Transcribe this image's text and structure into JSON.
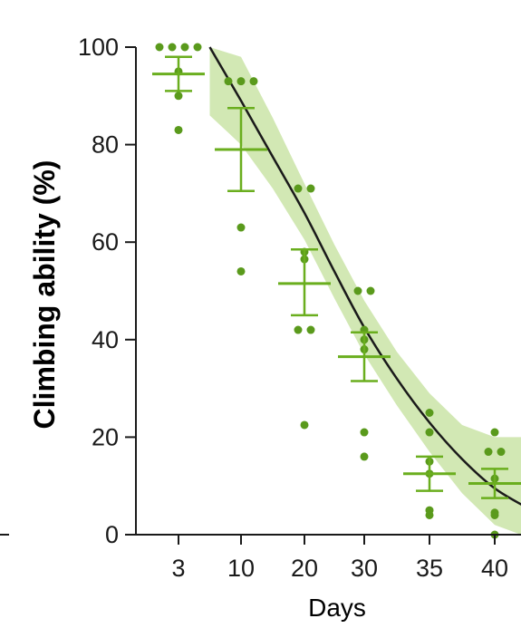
{
  "chart_data": {
    "type": "scatter",
    "title": "",
    "xlabel": "Days",
    "ylabel": "Climbing ability (%)",
    "x_categories": [
      "3",
      "10",
      "20",
      "30",
      "35",
      "40"
    ],
    "ylim": [
      0,
      100
    ],
    "y_ticks": [
      0,
      20,
      40,
      60,
      80,
      100
    ],
    "grid": false,
    "colors": {
      "points": "#5a9a1c",
      "mean_bars": "#6aae1e",
      "fit_line": "#1a1a1a",
      "confidence_band": "#d2e8b4"
    },
    "points": [
      {
        "x": "3",
        "y": 100
      },
      {
        "x": "3",
        "y": 100
      },
      {
        "x": "3",
        "y": 100
      },
      {
        "x": "3",
        "y": 100
      },
      {
        "x": "3",
        "y": 95
      },
      {
        "x": "3",
        "y": 90
      },
      {
        "x": "3",
        "y": 83
      },
      {
        "x": "10",
        "y": 93
      },
      {
        "x": "10",
        "y": 93
      },
      {
        "x": "10",
        "y": 93
      },
      {
        "x": "10",
        "y": 63
      },
      {
        "x": "10",
        "y": 54
      },
      {
        "x": "20",
        "y": 71
      },
      {
        "x": "20",
        "y": 71
      },
      {
        "x": "20",
        "y": 58
      },
      {
        "x": "20",
        "y": 56.5
      },
      {
        "x": "20",
        "y": 42
      },
      {
        "x": "20",
        "y": 42
      },
      {
        "x": "20",
        "y": 22.5
      },
      {
        "x": "30",
        "y": 50
      },
      {
        "x": "30",
        "y": 50
      },
      {
        "x": "30",
        "y": 42
      },
      {
        "x": "30",
        "y": 40
      },
      {
        "x": "30",
        "y": 38
      },
      {
        "x": "30",
        "y": 21
      },
      {
        "x": "30",
        "y": 16
      },
      {
        "x": "35",
        "y": 25
      },
      {
        "x": "35",
        "y": 21
      },
      {
        "x": "35",
        "y": 15
      },
      {
        "x": "35",
        "y": 12.5
      },
      {
        "x": "35",
        "y": 5
      },
      {
        "x": "35",
        "y": 4
      },
      {
        "x": "40",
        "y": 21
      },
      {
        "x": "40",
        "y": 17
      },
      {
        "x": "40",
        "y": 17
      },
      {
        "x": "40",
        "y": 11.5
      },
      {
        "x": "40",
        "y": 4.5
      },
      {
        "x": "40",
        "y": 4
      },
      {
        "x": "40",
        "y": 0
      }
    ],
    "means": [
      {
        "x": "3",
        "mean": 94.5,
        "sem_low": 91,
        "sem_high": 98
      },
      {
        "x": "10",
        "mean": 79,
        "sem_low": 70.5,
        "sem_high": 87.5
      },
      {
        "x": "20",
        "mean": 51.5,
        "sem_low": 45,
        "sem_high": 58.5
      },
      {
        "x": "30",
        "mean": 36.5,
        "sem_low": 31.5,
        "sem_high": 41.5
      },
      {
        "x": "35",
        "mean": 12.5,
        "sem_low": 9,
        "sem_high": 16
      },
      {
        "x": "40",
        "mean": 10.5,
        "sem_low": 7.5,
        "sem_high": 13.5
      }
    ],
    "fit": {
      "x": [
        1.5,
        2.0,
        2.5,
        3.0,
        3.5,
        4.0,
        4.5,
        5.0,
        5.5,
        6.0,
        6.5
      ],
      "y": [
        100,
        89,
        77.5,
        66,
        54,
        42.5,
        32,
        23,
        15.5,
        9.5,
        5.5
      ],
      "ci_low": [
        86,
        80,
        71,
        60.5,
        48.5,
        37,
        26.5,
        17,
        8.5,
        2,
        0
      ],
      "ci_high": [
        100,
        98,
        85.5,
        72,
        59.5,
        48,
        37.5,
        29,
        22.5,
        20,
        20
      ]
    }
  }
}
